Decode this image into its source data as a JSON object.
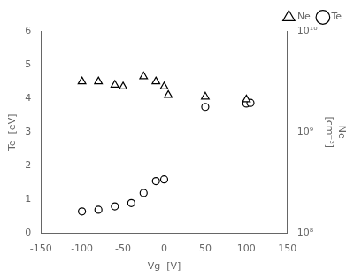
{
  "chart_data": {
    "type": "scatter",
    "xlabel": "Vg  [V]",
    "ylabel": "Te  [eV]",
    "y2label": [
      "Ne",
      "[cm⁻³]"
    ],
    "xlim": [
      -150,
      150
    ],
    "xticks": [
      -150,
      -100,
      -50,
      0,
      50,
      100,
      150
    ],
    "ylim": [
      0,
      6
    ],
    "yticks": [
      0,
      1,
      2,
      3,
      4,
      5,
      6
    ],
    "y2lim": [
      100000000,
      10000000000
    ],
    "y2ticks": [
      {
        "value": 100000000,
        "label": "10⁸"
      },
      {
        "value": 1000000000,
        "label": "10⁹"
      },
      {
        "value": 10000000000,
        "label": "10¹⁰"
      }
    ],
    "log": "y2",
    "grid": false,
    "legend": "upper right",
    "series": [
      {
        "name": "Ne",
        "color": "#000000",
        "marker": "triangle",
        "x": [
          -100,
          -80,
          -60,
          -50,
          -25,
          -10,
          0,
          5,
          50,
          100
        ],
        "values": [
          4.5,
          4.5,
          4.4,
          4.35,
          4.65,
          4.5,
          4.35,
          4.1,
          4.05,
          3.97
        ]
      },
      {
        "name": "Te",
        "color": "#000000",
        "marker": "circle",
        "x": [
          -100,
          -80,
          -60,
          -40,
          -25,
          -10,
          0,
          50,
          100,
          105
        ],
        "values": [
          0.65,
          0.7,
          0.8,
          0.9,
          1.2,
          1.55,
          1.6,
          3.75,
          3.85,
          3.87
        ]
      }
    ]
  }
}
